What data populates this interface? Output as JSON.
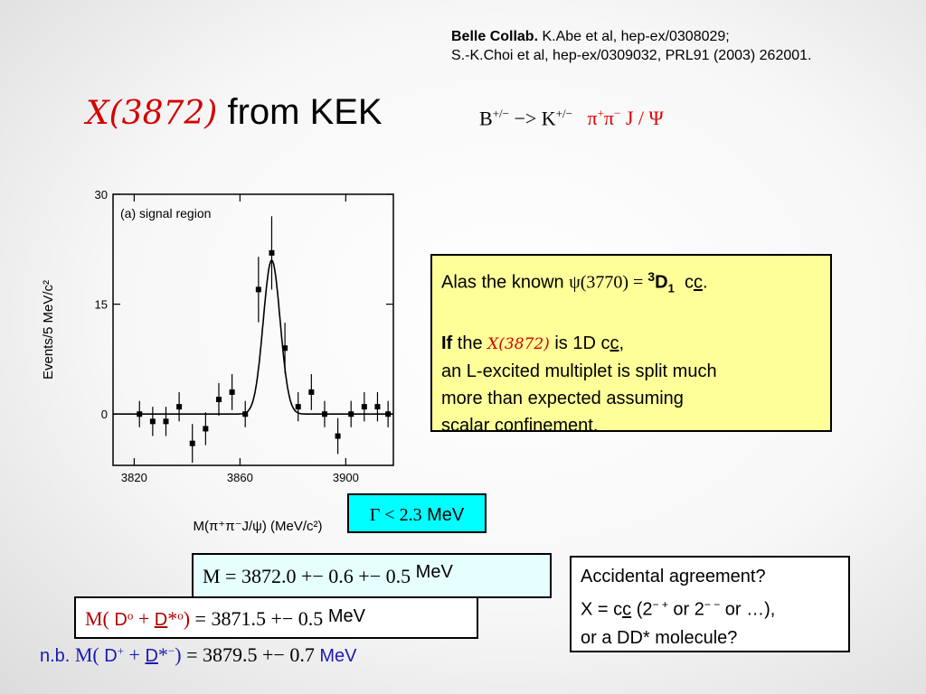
{
  "reference": {
    "collab": "Belle Collab.",
    "line1_rest": " K.Abe et al, hep-ex/0308029;",
    "line2": "S.-K.Choi et al, hep-ex/0309032, PRL91 (2003) 262001."
  },
  "title": {
    "x_label": "X(3872)",
    "rest": " from KEK"
  },
  "decay": {
    "b": "B",
    "b_sup": "+/−",
    "arrow": " −> K",
    "k_sup": "+/−",
    "pi": "π",
    "pi_sup_plus": "+",
    "pi_sup_minus": "−",
    "jpsi": " J / Ψ"
  },
  "info_box": {
    "l1_text": "Alas the known ",
    "l1_psi": "ψ(3770)  = ",
    "l1_sup": "3",
    "l1_d": "D",
    "l1_sub": "1",
    "l1_cc1": "c",
    "l1_cc2": "c",
    "l1_end": ".",
    "l2_if": "If",
    "l2_the": " the ",
    "l2_x": "X(3872)",
    "l2_rest": " is 1D c",
    "l2_c": "c",
    "l2_comma": ",",
    "l3": "an L-excited multiplet is split much",
    "l4": "more than expected assuming",
    "l5": "scalar confinement."
  },
  "width_box": {
    "gamma": "Γ < 2.3",
    "unit": " MeV"
  },
  "mass_box": {
    "text": "M =  3872.0 +− 0.6 +− 0.5",
    "unit": " MeV"
  },
  "neutral_box": {
    "m": "M( ",
    "d0": "D",
    "d0_sup": "o",
    "plus": " + ",
    "dstar": "D",
    "dstar_tail": "*",
    "dstar_sup": "o",
    "close": ")",
    "eq": "  =  3871.5 +− 0.5",
    "unit": " MeV"
  },
  "charged_line": {
    "nb": "n.b.",
    "m": " M( ",
    "d": "D",
    "d_sup": "+",
    "plus": " + ",
    "dbar": "D",
    "dbar_tail": "*",
    "dbar_sup": "−",
    "close": ")",
    "eq": "  =  3879.5 +− 0.7",
    "unit": "  MeV"
  },
  "question_box": {
    "l1": "Accidental agreement?",
    "l2_a": "X = c",
    "l2_c": "c",
    "l2_b": "  (2",
    "l2_sup1": "− +",
    "l2_c2": " or 2",
    "l2_sup2": "− −",
    "l2_d": " or …),",
    "l3": "or a DD* molecule?"
  },
  "chart_data": {
    "type": "scatter",
    "panel_label": "(a) signal region",
    "ylabel": "Events/5 MeV/c²",
    "xlabel": "M(π⁺π⁻J/ψ) (MeV/c²)",
    "xlim": [
      3812,
      3918
    ],
    "ylim": [
      -7,
      30
    ],
    "x_ticks": [
      3820,
      3860,
      3900
    ],
    "y_ticks": [
      0,
      15,
      30
    ],
    "points": [
      {
        "x": 3822,
        "y": 0
      },
      {
        "x": 3827,
        "y": -1
      },
      {
        "x": 3832,
        "y": -1
      },
      {
        "x": 3837,
        "y": 1
      },
      {
        "x": 3842,
        "y": -4
      },
      {
        "x": 3847,
        "y": -2
      },
      {
        "x": 3852,
        "y": 2
      },
      {
        "x": 3857,
        "y": 3
      },
      {
        "x": 3862,
        "y": 0
      },
      {
        "x": 3867,
        "y": 17
      },
      {
        "x": 3872,
        "y": 22
      },
      {
        "x": 3877,
        "y": 9
      },
      {
        "x": 3882,
        "y": 1
      },
      {
        "x": 3887,
        "y": 3
      },
      {
        "x": 3892,
        "y": 0
      },
      {
        "x": 3897,
        "y": -3
      },
      {
        "x": 3902,
        "y": 0
      },
      {
        "x": 3907,
        "y": 1
      },
      {
        "x": 3912,
        "y": 1
      },
      {
        "x": 3916,
        "y": 0
      }
    ],
    "fit": {
      "background": 0,
      "peak_x": 3872,
      "peak_height": 21,
      "sigma": 3.2
    }
  }
}
